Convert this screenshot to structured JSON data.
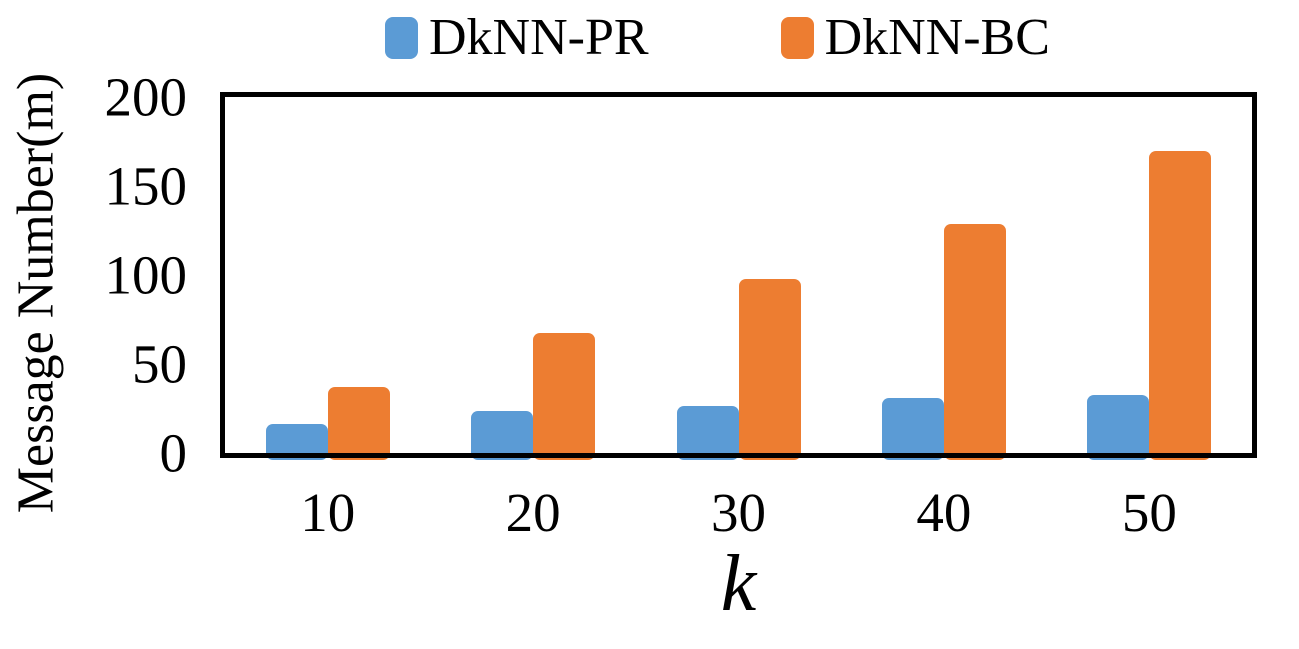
{
  "chart_data": {
    "type": "bar",
    "categories": [
      "10",
      "20",
      "30",
      "40",
      "50"
    ],
    "series": [
      {
        "name": "DkNN-PR",
        "color": "#5B9BD5",
        "values": [
          20,
          27,
          30,
          34,
          36
        ]
      },
      {
        "name": "DkNN-BC",
        "color": "#ED7D31",
        "values": [
          40,
          70,
          100,
          130,
          170
        ]
      }
    ],
    "title": "",
    "xlabel": "k",
    "ylabel": "Message Number(m)",
    "ylim": [
      0,
      200
    ],
    "yticks": [
      0,
      50,
      100,
      150,
      200
    ],
    "grid": false,
    "legend_position": "top-center",
    "plot_border_color": "#000000"
  },
  "legend": {
    "items": [
      {
        "label": "DkNN-PR",
        "color": "#5B9BD5"
      },
      {
        "label": "DkNN-BC",
        "color": "#ED7D31"
      }
    ]
  },
  "axes": {
    "y_label": "Message Number(m)",
    "x_label": "k",
    "y_ticks": [
      "200",
      "150",
      "100",
      "50",
      "0"
    ],
    "x_ticks": [
      "10",
      "20",
      "30",
      "40",
      "50"
    ]
  }
}
